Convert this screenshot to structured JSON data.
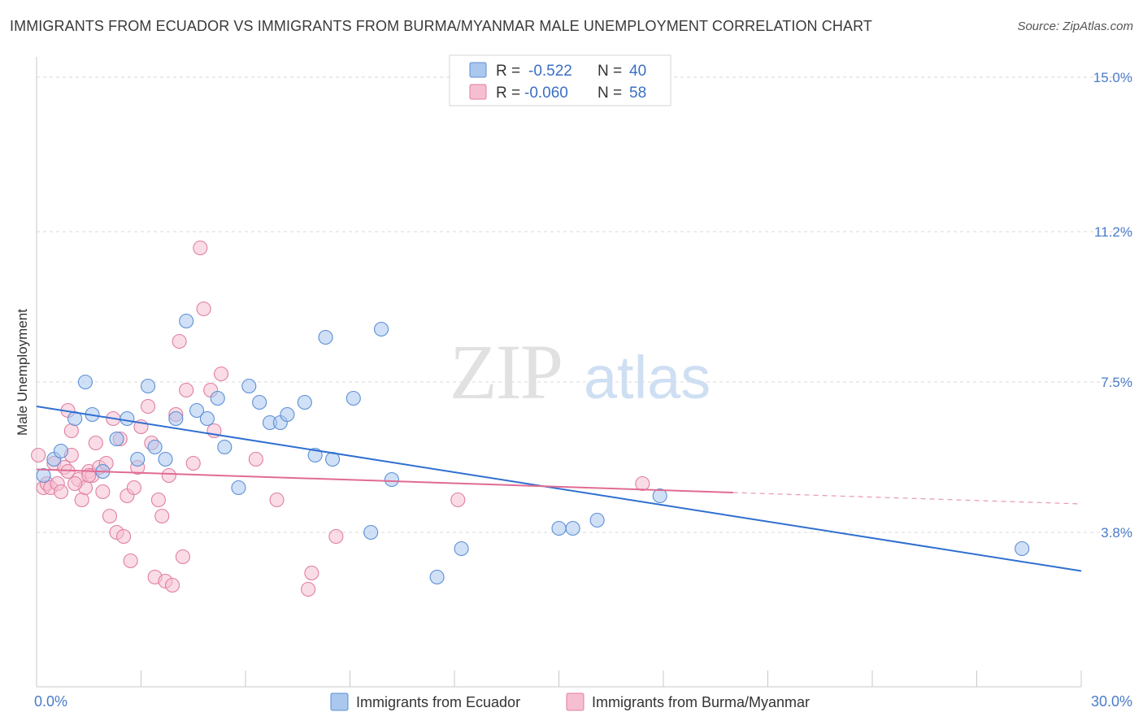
{
  "title": "IMMIGRANTS FROM ECUADOR VS IMMIGRANTS FROM BURMA/MYANMAR MALE UNEMPLOYMENT CORRELATION CHART",
  "source": "Source: ZipAtlas.com",
  "watermark": {
    "zip": "ZIP",
    "atlas": "atlas"
  },
  "colors": {
    "ecuador_fill": "#aac7ee",
    "ecuador_stroke": "#5b8fd6",
    "ecuador_line": "#2f6fd0",
    "burma_fill": "#f6bfd1",
    "burma_stroke": "#e07ea0",
    "burma_line": "#e06b93",
    "grid": "#d8d8d8",
    "axis_text": "#4a7cc9"
  },
  "legend": {
    "rows": [
      {
        "r_label": "R =",
        "r_value": "-0.522",
        "n_label": "N =",
        "n_value": "40"
      },
      {
        "r_label": "R =",
        "r_value": "-0.060",
        "n_label": "N =",
        "n_value": "58"
      }
    ]
  },
  "chart_data": {
    "type": "scatter",
    "title": "IMMIGRANTS FROM ECUADOR VS IMMIGRANTS FROM BURMA/MYANMAR MALE UNEMPLOYMENT CORRELATION CHART",
    "xlabel": "",
    "ylabel": "Male Unemployment",
    "xlim": [
      0,
      30
    ],
    "ylim": [
      0,
      15.5
    ],
    "x_tick_labels": [
      "0.0%",
      "30.0%"
    ],
    "y_ticks": [
      3.8,
      7.5,
      11.2,
      15.0
    ],
    "y_tick_labels": [
      "3.8%",
      "7.5%",
      "11.2%",
      "15.0%"
    ],
    "grid": "horizontal dashed",
    "legend_placement": "top-center",
    "series": [
      {
        "name": "Immigrants from Ecuador",
        "r": -0.522,
        "n": 40,
        "trend": {
          "x": [
            0,
            30
          ],
          "y": [
            6.9,
            2.85
          ]
        },
        "points": [
          [
            0.2,
            5.2
          ],
          [
            0.5,
            5.6
          ],
          [
            0.7,
            5.8
          ],
          [
            1.1,
            6.6
          ],
          [
            1.4,
            7.5
          ],
          [
            1.6,
            6.7
          ],
          [
            1.9,
            5.3
          ],
          [
            2.3,
            6.1
          ],
          [
            2.6,
            6.6
          ],
          [
            2.9,
            5.6
          ],
          [
            3.2,
            7.4
          ],
          [
            3.4,
            5.9
          ],
          [
            3.7,
            5.6
          ],
          [
            4.0,
            6.6
          ],
          [
            4.3,
            9.0
          ],
          [
            4.6,
            6.8
          ],
          [
            4.9,
            6.6
          ],
          [
            5.2,
            7.1
          ],
          [
            5.4,
            5.9
          ],
          [
            5.8,
            4.9
          ],
          [
            6.1,
            7.4
          ],
          [
            6.4,
            7.0
          ],
          [
            6.7,
            6.5
          ],
          [
            7.0,
            6.5
          ],
          [
            7.2,
            6.7
          ],
          [
            7.7,
            7.0
          ],
          [
            8.0,
            5.7
          ],
          [
            8.3,
            8.6
          ],
          [
            8.5,
            5.6
          ],
          [
            9.1,
            7.1
          ],
          [
            9.9,
            8.8
          ],
          [
            9.6,
            3.8
          ],
          [
            10.2,
            5.1
          ],
          [
            11.5,
            2.7
          ],
          [
            12.2,
            3.4
          ],
          [
            15.0,
            3.9
          ],
          [
            15.4,
            3.9
          ],
          [
            16.1,
            4.1
          ],
          [
            17.9,
            4.7
          ],
          [
            28.3,
            3.4
          ]
        ]
      },
      {
        "name": "Immigrants from Burma/Myanmar",
        "r": -0.06,
        "n": 58,
        "trend": {
          "x": [
            0,
            20
          ],
          "y": [
            5.35,
            4.78
          ]
        },
        "trend_extension": {
          "x": [
            20,
            30
          ],
          "y": [
            4.78,
            4.5
          ]
        },
        "points": [
          [
            0.05,
            5.7
          ],
          [
            0.2,
            4.9
          ],
          [
            0.3,
            5.0
          ],
          [
            0.4,
            4.9
          ],
          [
            0.5,
            5.5
          ],
          [
            0.6,
            5.0
          ],
          [
            0.7,
            4.8
          ],
          [
            0.8,
            5.4
          ],
          [
            0.9,
            5.3
          ],
          [
            1.0,
            5.7
          ],
          [
            1.0,
            6.3
          ],
          [
            1.2,
            5.1
          ],
          [
            1.3,
            4.6
          ],
          [
            1.4,
            4.9
          ],
          [
            1.5,
            5.3
          ],
          [
            1.6,
            5.2
          ],
          [
            1.7,
            6.0
          ],
          [
            1.8,
            5.4
          ],
          [
            1.9,
            4.8
          ],
          [
            2.0,
            5.5
          ],
          [
            2.1,
            4.2
          ],
          [
            2.2,
            6.6
          ],
          [
            2.3,
            3.8
          ],
          [
            2.4,
            6.1
          ],
          [
            2.5,
            3.7
          ],
          [
            2.6,
            4.7
          ],
          [
            2.7,
            3.1
          ],
          [
            2.8,
            4.9
          ],
          [
            3.0,
            6.4
          ],
          [
            3.2,
            6.9
          ],
          [
            3.3,
            6.0
          ],
          [
            3.4,
            2.7
          ],
          [
            3.5,
            4.6
          ],
          [
            3.6,
            4.2
          ],
          [
            3.7,
            2.6
          ],
          [
            3.8,
            5.2
          ],
          [
            3.9,
            2.5
          ],
          [
            4.0,
            6.7
          ],
          [
            4.1,
            8.5
          ],
          [
            4.2,
            3.2
          ],
          [
            4.3,
            7.3
          ],
          [
            4.5,
            5.5
          ],
          [
            4.7,
            10.8
          ],
          [
            4.8,
            9.3
          ],
          [
            5.0,
            7.3
          ],
          [
            5.1,
            6.3
          ],
          [
            5.3,
            7.7
          ],
          [
            6.3,
            5.6
          ],
          [
            6.9,
            4.6
          ],
          [
            7.8,
            2.4
          ],
          [
            7.9,
            2.8
          ],
          [
            8.6,
            3.7
          ],
          [
            12.1,
            4.6
          ],
          [
            17.4,
            5.0
          ],
          [
            1.5,
            5.2
          ],
          [
            2.9,
            5.4
          ],
          [
            0.9,
            6.8
          ],
          [
            1.1,
            5.0
          ]
        ]
      }
    ]
  },
  "bottom_legend": [
    {
      "label": "Immigrants from Ecuador"
    },
    {
      "label": "Immigrants from Burma/Myanmar"
    }
  ]
}
